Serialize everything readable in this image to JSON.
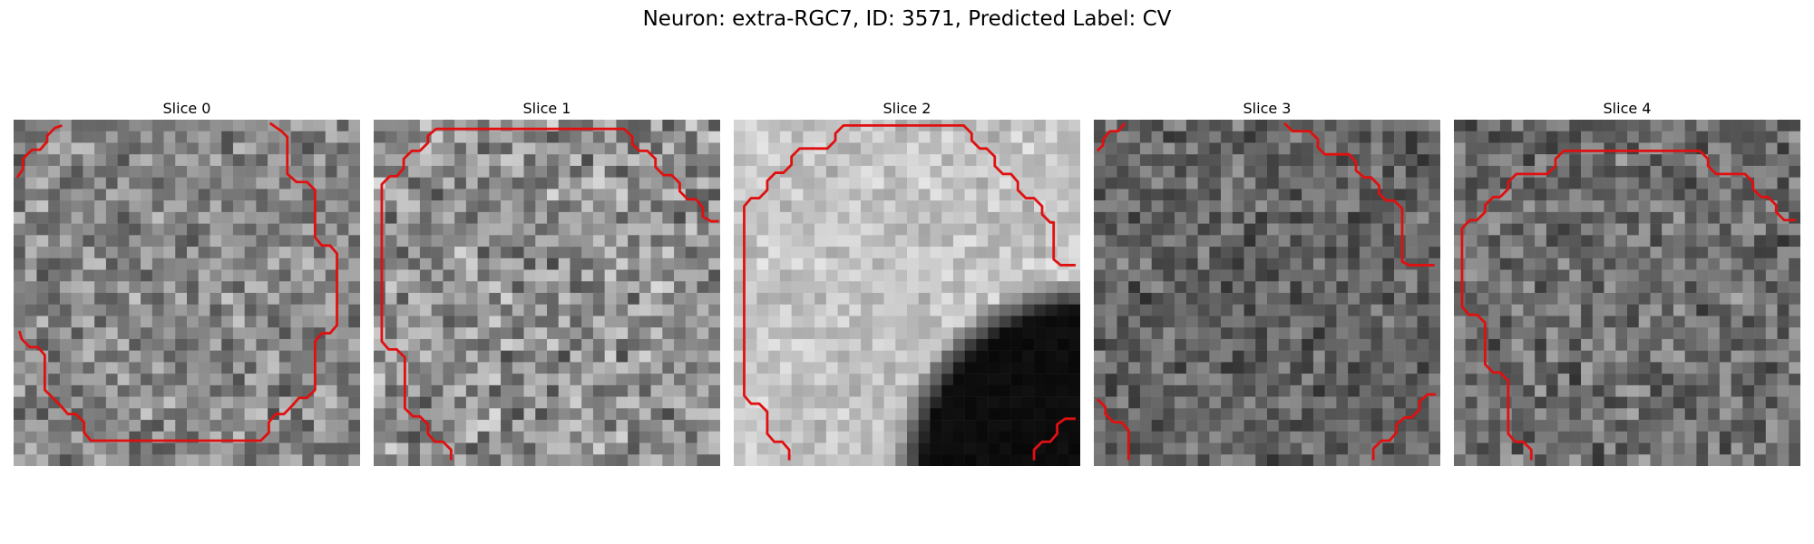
{
  "figure": {
    "title": "Neuron: extra-RGC7, ID: 3571, Predicted Label: CV"
  },
  "slices": [
    {
      "title": "Slice 0",
      "tone": "mid"
    },
    {
      "title": "Slice 1",
      "tone": "mid-light"
    },
    {
      "title": "Slice 2",
      "tone": "light-with-dark-blob"
    },
    {
      "title": "Slice 3",
      "tone": "dark"
    },
    {
      "title": "Slice 4",
      "tone": "mid-dark"
    }
  ],
  "colors": {
    "contour": "#e01010",
    "background": "#ffffff"
  }
}
